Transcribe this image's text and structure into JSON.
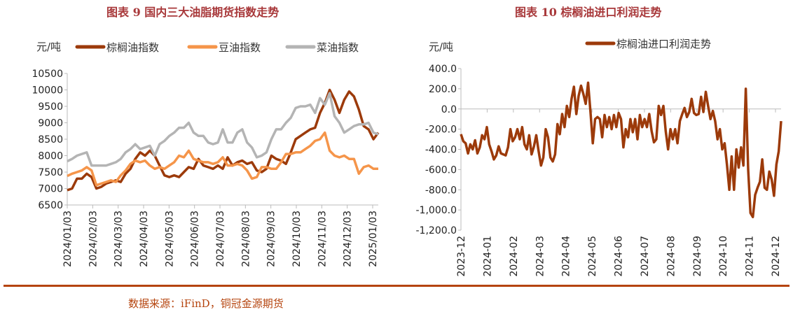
{
  "chart_data": [
    {
      "type": "line",
      "title": "图表 9  国内三大油脂期货指数走势",
      "ylabel": "元/吨",
      "ylim": [
        6500,
        10500
      ],
      "yticks": [
        "10500",
        "10000",
        "9500",
        "9000",
        "8500",
        "8000",
        "7500",
        "7000",
        "6500"
      ],
      "xticks": [
        "2024/01/03",
        "2024/02/03",
        "2024/03/03",
        "2024/04/03",
        "2024/05/03",
        "2024/06/03",
        "2024/07/03",
        "2024/08/03",
        "2024/09/03",
        "2024/10/03",
        "2024/11/03",
        "2024/12/03",
        "2025/01/03"
      ],
      "legend_position": "top",
      "series": [
        {
          "name": "棕榈油指数",
          "color": "#9c3a0a",
          "values": [
            6950,
            7000,
            7300,
            7300,
            7450,
            7350,
            7000,
            7050,
            7150,
            7200,
            7250,
            7200,
            7450,
            7600,
            7900,
            8100,
            8000,
            8150,
            8000,
            7700,
            7400,
            7350,
            7400,
            7350,
            7500,
            7650,
            7600,
            7900,
            7700,
            7650,
            7600,
            7700,
            7600,
            7950,
            7700,
            7800,
            7850,
            7750,
            7800,
            7550,
            7500,
            7600,
            8000,
            7900,
            7850,
            7750,
            8100,
            8500,
            8600,
            8700,
            8800,
            8850,
            9300,
            9600,
            10000,
            9700,
            9300,
            9700,
            9950,
            9800,
            9400,
            8900,
            8800,
            8500,
            8700
          ]
        },
        {
          "name": "豆油指数",
          "color": "#f5954a",
          "values": [
            7380,
            7450,
            7500,
            7550,
            7650,
            7550,
            7100,
            7150,
            7200,
            7250,
            7200,
            7400,
            7550,
            7750,
            7850,
            7800,
            7850,
            7700,
            7600,
            7650,
            7600,
            7700,
            7800,
            8000,
            7950,
            8150,
            7900,
            7850,
            7800,
            7800,
            7750,
            7800,
            7950,
            7700,
            7700,
            7750,
            7700,
            7550,
            7300,
            7350,
            7650,
            7650,
            7600,
            7600,
            7800,
            8050,
            8050,
            8100,
            8100,
            8200,
            8300,
            8450,
            8500,
            8700,
            8150,
            8000,
            7950,
            8000,
            7900,
            7900,
            7450,
            7650,
            7700,
            7600,
            7600
          ]
        },
        {
          "name": "菜油指数",
          "color": "#b4b4b4",
          "values": [
            7830,
            7900,
            8000,
            8050,
            8100,
            7700,
            7700,
            7700,
            7700,
            7750,
            7800,
            7900,
            8100,
            8200,
            8350,
            8200,
            8250,
            8300,
            8000,
            8350,
            8450,
            8600,
            8700,
            8850,
            8850,
            9000,
            8700,
            8600,
            8600,
            8400,
            8350,
            8400,
            8800,
            8400,
            8400,
            8700,
            8800,
            8400,
            8250,
            7950,
            8000,
            8100,
            8500,
            8800,
            8800,
            9000,
            9150,
            9450,
            9500,
            9500,
            9550,
            9300,
            9750,
            9550,
            9900,
            9200,
            9000,
            8700,
            8800,
            8900,
            8950,
            8950,
            9000,
            8700,
            8650
          ]
        }
      ]
    },
    {
      "type": "line",
      "title": "图表 10  棕榈油进口利润走势",
      "ylabel": "元/吨",
      "ylim": [
        -1200,
        400
      ],
      "yticks": [
        "400.0",
        "200.0",
        "0.0",
        "-200.0",
        "-400.0",
        "-600.0",
        "-800.0",
        "-1,000.0",
        "-1,200.0"
      ],
      "xticks": [
        "2023-12",
        "2024-01",
        "2024-02",
        "2024-03",
        "2024-04",
        "2024-05",
        "2024-06",
        "2024-07",
        "2024-08",
        "2024-09",
        "2024-10",
        "2024-11",
        "2024-12"
      ],
      "legend_position": "top-right",
      "series": [
        {
          "name": "棕榈油进口利润走势",
          "color": "#9c3a0a",
          "values": [
            -250,
            -320,
            -340,
            -440,
            -350,
            -400,
            -310,
            -440,
            -380,
            -260,
            -300,
            -180,
            -350,
            -420,
            -500,
            -460,
            -370,
            -440,
            -450,
            -460,
            -380,
            -200,
            -320,
            -280,
            -200,
            -300,
            -180,
            -350,
            -400,
            -260,
            -450,
            -370,
            -260,
            -420,
            -560,
            -480,
            -200,
            -280,
            -480,
            -520,
            -450,
            -150,
            -250,
            -50,
            -180,
            30,
            -80,
            100,
            220,
            -50,
            130,
            230,
            150,
            50,
            260,
            -20,
            -340,
            -100,
            -80,
            -100,
            -280,
            -60,
            -180,
            -80,
            -200,
            -60,
            -180,
            -40,
            -100,
            -380,
            -200,
            -280,
            -100,
            -230,
            -100,
            -300,
            -60,
            -180,
            -100,
            -180,
            -50,
            -220,
            -330,
            -300,
            30,
            -60,
            30,
            -220,
            -400,
            -200,
            -300,
            -200,
            -340,
            -120,
            -50,
            10,
            -80,
            -30,
            100,
            -40,
            -60,
            -50,
            120,
            -30,
            170,
            30,
            -100,
            -20,
            -120,
            -300,
            -200,
            -400,
            -340,
            -550,
            -800,
            -470,
            -800,
            -400,
            -580,
            -380,
            -560,
            200,
            -600,
            -1030,
            -1070,
            -850,
            -780,
            -720,
            -500,
            -780,
            -800,
            -620,
            -700,
            -860,
            -550,
            -420,
            -120
          ]
        }
      ]
    }
  ],
  "footer": "数据来源：iFinD，铜冠金源期货"
}
